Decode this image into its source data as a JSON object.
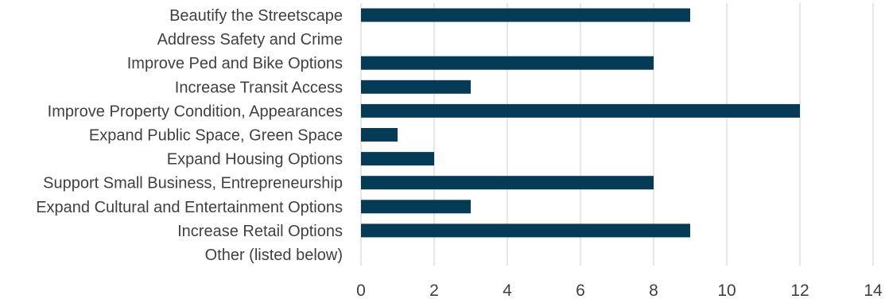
{
  "chart_data": {
    "type": "bar",
    "orientation": "horizontal",
    "categories": [
      "Beautify the Streetscape",
      "Address Safety and Crime",
      "Improve Ped and Bike Options",
      "Increase Transit Access",
      "Improve Property Condition, Appearances",
      "Expand Public Space, Green Space",
      "Expand Housing Options",
      "Support Small Business, Entrepreneurship",
      "Expand Cultural and Entertainment Options",
      "Increase Retail Options",
      "Other (listed below)"
    ],
    "values": [
      9,
      0,
      8,
      3,
      12,
      1,
      2,
      8,
      3,
      9,
      0
    ],
    "xlim": [
      0,
      14
    ],
    "xticks": [
      "0",
      "2",
      "4",
      "6",
      "8",
      "10",
      "12",
      "14"
    ],
    "title": "",
    "xlabel": "",
    "ylabel": "",
    "grid": "vertical",
    "legend": "none",
    "colors": {
      "bar": "#063b55",
      "grid": "#d9d9d9",
      "text": "#404040"
    }
  }
}
